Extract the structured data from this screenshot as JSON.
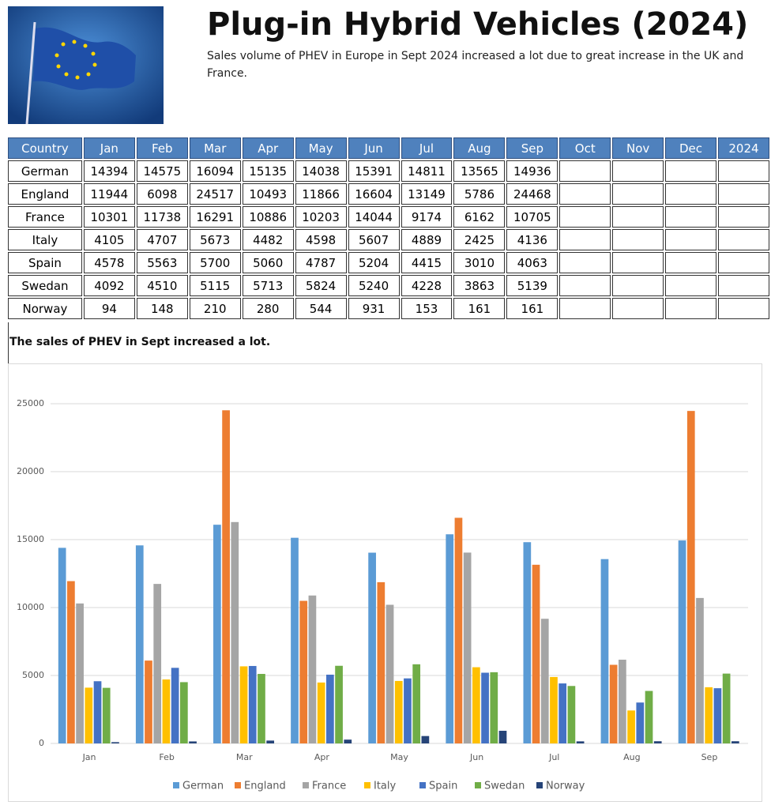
{
  "header": {
    "title": "Plug-in Hybrid Vehicles (2024)",
    "subtitle": "Sales volume of PHEV in Europe in Sept 2024 increased a lot due to great increase in the UK and France."
  },
  "table": {
    "columns": [
      "Country",
      "Jan",
      "Feb",
      "Mar",
      "Apr",
      "May",
      "Jun",
      "Jul",
      "Aug",
      "Sep",
      "Oct",
      "Nov",
      "Dec",
      "2024"
    ]
  },
  "chart_data": {
    "type": "bar",
    "title": "The sales of PHEV in Sept increased a lot.",
    "categories": [
      "Jan",
      "Feb",
      "Mar",
      "Apr",
      "May",
      "Jun",
      "Jul",
      "Aug",
      "Sep"
    ],
    "series": [
      {
        "name": "German",
        "color": "#5b9bd5",
        "values": [
          14394,
          14575,
          16094,
          15135,
          14038,
          15391,
          14811,
          13565,
          14936
        ]
      },
      {
        "name": "England",
        "color": "#ed7d31",
        "values": [
          11944,
          6098,
          24517,
          10493,
          11866,
          16604,
          13149,
          5786,
          24468
        ]
      },
      {
        "name": "France",
        "color": "#a5a5a5",
        "values": [
          10301,
          11738,
          16291,
          10886,
          10203,
          14044,
          9174,
          6162,
          10705
        ]
      },
      {
        "name": "Italy",
        "color": "#ffc000",
        "values": [
          4105,
          4707,
          5673,
          4482,
          4598,
          5607,
          4889,
          2425,
          4136
        ]
      },
      {
        "name": "Spain",
        "color": "#4472c4",
        "values": [
          4578,
          5563,
          5700,
          5060,
          4787,
          5204,
          4415,
          3010,
          4063
        ]
      },
      {
        "name": "Swedan",
        "color": "#70ad47",
        "values": [
          4092,
          4510,
          5115,
          5713,
          5824,
          5240,
          4228,
          3863,
          5139
        ]
      },
      {
        "name": "Norway",
        "color": "#264478",
        "values": [
          94,
          148,
          210,
          280,
          544,
          931,
          153,
          161,
          161
        ]
      }
    ],
    "ylim": [
      0,
      25000
    ],
    "yticks": [
      0,
      5000,
      10000,
      15000,
      20000,
      25000
    ],
    "grid": true,
    "legend": "bottom"
  }
}
